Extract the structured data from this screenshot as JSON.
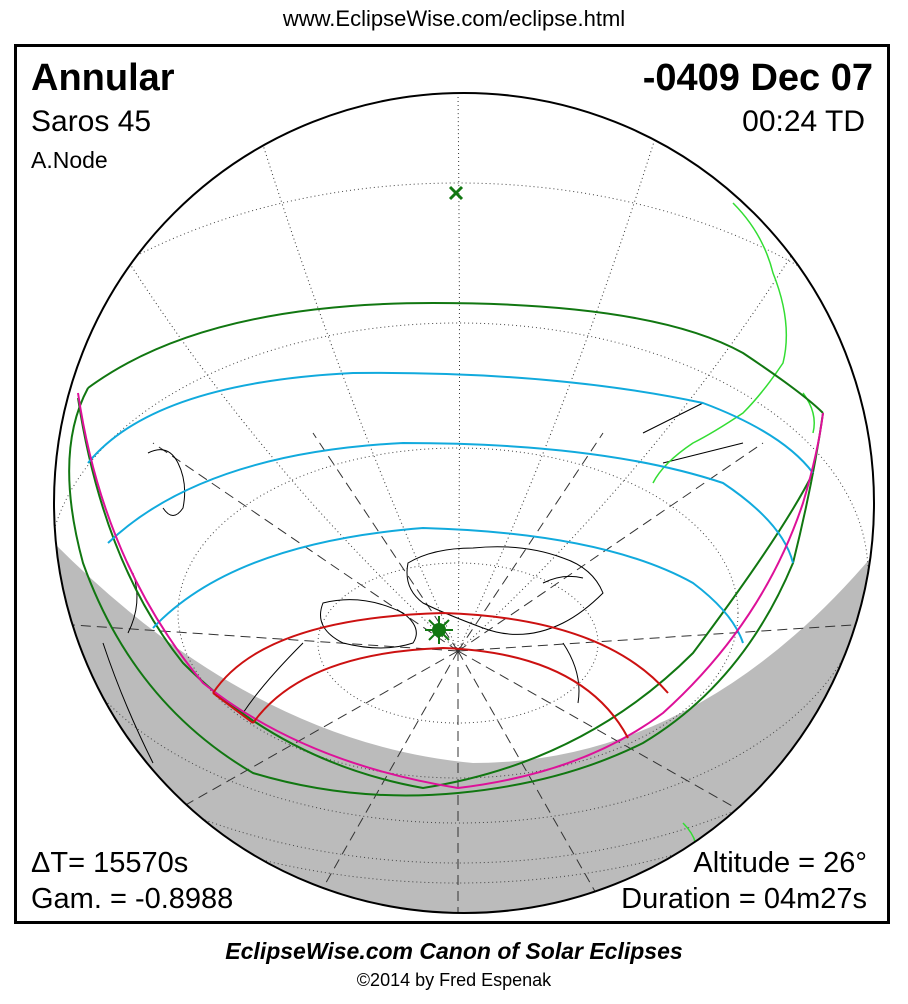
{
  "header": {
    "url": "www.EclipseWise.com/eclipse.html"
  },
  "eclipse": {
    "type": "Annular",
    "date": "-0409 Dec 07",
    "saros": "Saros  45",
    "time": "00:24 TD",
    "node": "A.Node",
    "delta_t": "ΔT=  15570s",
    "gamma": "Gam. = -0.8988",
    "altitude": "Altitude = 26°",
    "duration": "Duration = 04m27s"
  },
  "footer": {
    "title": "EclipseWise.com Canon of Solar Eclipses",
    "copyright": "©2014 by Fred Espenak"
  },
  "colors": {
    "penumbral_limit": "#117711",
    "partial_magnitude": "#11aadd",
    "rise_set": "#dd1199",
    "central_path": "#cc1111",
    "night": "#bbbbbb",
    "coastline_highlight": "#33dd33"
  },
  "markers": {
    "sub_solar_point": "x-marker",
    "greatest_eclipse": "star-marker"
  }
}
